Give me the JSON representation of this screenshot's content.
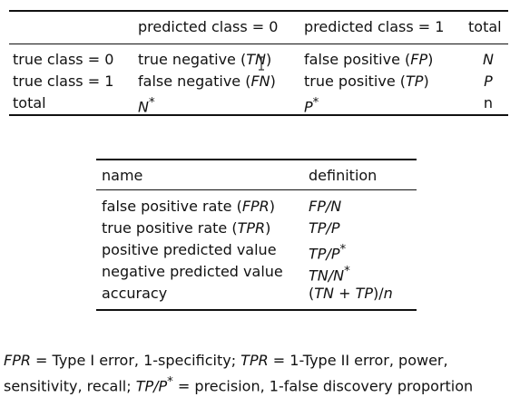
{
  "confusion_table": {
    "header": {
      "predicted0": "predicted class = 0",
      "predicted1": "predicted class = 1",
      "total": "total"
    },
    "rows": [
      {
        "label": "true class = 0",
        "c1_text": "true negative (",
        "c1_abbr": "TN",
        "c1_close": ")",
        "c2_text": "false positive (",
        "c2_abbr": "FP",
        "c2_close": ")",
        "total": "N"
      },
      {
        "label": "true class = 1",
        "c1_text": "false negative (",
        "c1_abbr": "FN",
        "c1_close": ")",
        "c2_text": "true positive (",
        "c2_abbr": "TP",
        "c2_close": ")",
        "total": "P"
      },
      {
        "label": "total",
        "c1_sym": "N",
        "c1_sup": "*",
        "c2_sym": "P",
        "c2_sup": "*",
        "total": "n"
      }
    ]
  },
  "metrics_table": {
    "header": {
      "name": "name",
      "definition": "definition"
    },
    "rows": [
      {
        "name_text": "false positive rate (",
        "name_abbr": "FPR",
        "name_close": ")",
        "definition": "FP/N"
      },
      {
        "name_text": "true positive rate (",
        "name_abbr": "TPR",
        "name_close": ")",
        "definition": "TP/P"
      },
      {
        "name_text": "positive predicted value",
        "definition_main": "TP/P",
        "definition_sup": "*"
      },
      {
        "name_text": "negative predicted value",
        "definition_main": "TN/N",
        "definition_sup": "*"
      },
      {
        "name_text": "accuracy",
        "definition_open": "(",
        "definition_main": "TN + TP",
        "definition_mid": ")/",
        "definition_end": "n"
      }
    ]
  },
  "footnote": {
    "line1_abbr1": "FPR",
    "line1_text1": " = Type I error, 1-specificity; ",
    "line1_abbr2": "TPR",
    "line1_text2": " = 1-Type II error, power,",
    "line2_text1": "sensitivity, recall; ",
    "line2_abbr": "TP/P",
    "line2_sup": "*",
    "line2_text2": " = precision, 1-false discovery proportion"
  }
}
